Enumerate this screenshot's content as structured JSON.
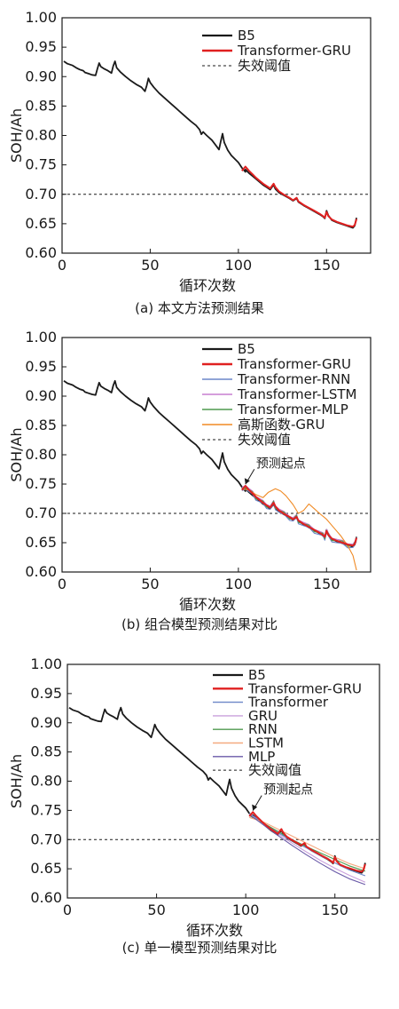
{
  "chart_data": [
    {
      "type": "line",
      "caption": "(a) 本文方法预测结果",
      "xlabel": "循环次数",
      "ylabel": "SOH/Ah",
      "xlim": [
        0,
        175
      ],
      "ylim": [
        0.6,
        1.0
      ],
      "xticks": [
        "0",
        "50",
        "100",
        "150"
      ],
      "yticks": [
        "0.60",
        "0.65",
        "0.70",
        "0.75",
        "0.80",
        "0.85",
        "0.90",
        "0.95",
        "1.00"
      ],
      "legend_position": "top-right",
      "threshold": 0.7,
      "series": [
        {
          "name": "B5",
          "color": "#1a1a1a",
          "key": "b5"
        },
        {
          "name": "Transformer-GRU",
          "color": "#e02020",
          "key": "tgru"
        }
      ],
      "threshold_label": "失效阈值"
    },
    {
      "type": "line",
      "caption": "(b) 组合模型预测结果对比",
      "xlabel": "循环次数",
      "ylabel": "SOH/Ah",
      "xlim": [
        0,
        175
      ],
      "ylim": [
        0.6,
        1.0
      ],
      "xticks": [
        "0",
        "50",
        "100",
        "150"
      ],
      "yticks": [
        "0.60",
        "0.65",
        "0.70",
        "0.75",
        "0.80",
        "0.85",
        "0.90",
        "0.95",
        "1.00"
      ],
      "legend_position": "top-right",
      "threshold": 0.7,
      "annotation": "预测起点",
      "series": [
        {
          "name": "B5",
          "color": "#1a1a1a",
          "key": "b5"
        },
        {
          "name": "Transformer-GRU",
          "color": "#e02020",
          "key": "tgru"
        },
        {
          "name": "Transformer-RNN",
          "color": "#6b86c8",
          "key": "trnn"
        },
        {
          "name": "Transformer-LSTM",
          "color": "#c77fd0",
          "key": "tlstm"
        },
        {
          "name": "Transformer-MLP",
          "color": "#4f9a4f",
          "key": "tmlp"
        },
        {
          "name": "高斯函数-GRU",
          "color": "#f08a24",
          "key": "ggru"
        }
      ],
      "threshold_label": "失效阈值"
    },
    {
      "type": "line",
      "caption": "(c) 单一模型预测结果对比",
      "xlabel": "循环次数",
      "ylabel": "SOH/Ah",
      "xlim": [
        0,
        175
      ],
      "ylim": [
        0.6,
        1.0
      ],
      "xticks": [
        "0",
        "50",
        "100",
        "150"
      ],
      "yticks": [
        "0.60",
        "0.65",
        "0.70",
        "0.75",
        "0.80",
        "0.85",
        "0.90",
        "0.95",
        "1.00"
      ],
      "legend_position": "top-right",
      "threshold": 0.7,
      "annotation": "预测起点",
      "series": [
        {
          "name": "B5",
          "color": "#1a1a1a",
          "key": "b5"
        },
        {
          "name": "Transformer-GRU",
          "color": "#e02020",
          "key": "tgru"
        },
        {
          "name": "Transformer",
          "color": "#6b86c8",
          "key": "trans"
        },
        {
          "name": "GRU",
          "color": "#c9a0dc",
          "key": "gru"
        },
        {
          "name": "RNN",
          "color": "#4f9a4f",
          "key": "rnn"
        },
        {
          "name": "LSTM",
          "color": "#f5a97f",
          "key": "lstm"
        },
        {
          "name": "MLP",
          "color": "#6a5aa8",
          "key": "mlp"
        }
      ],
      "threshold_label": "失效阈值"
    }
  ]
}
